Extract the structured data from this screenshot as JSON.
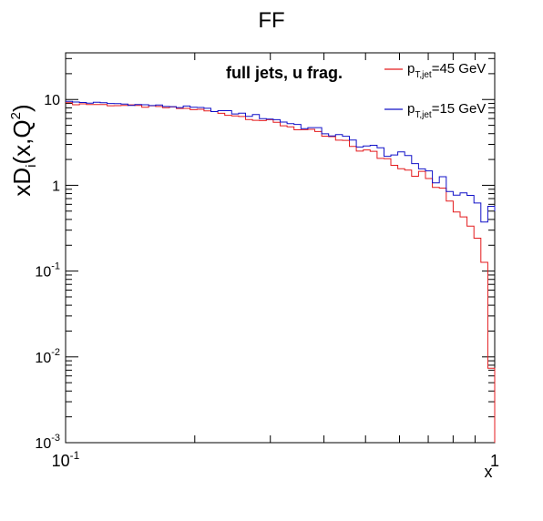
{
  "chart_data": {
    "type": "line",
    "title": "FF",
    "xlabel": "x",
    "ylabel_main": "xD",
    "ylabel_sub": "i",
    "ylabel_args": "(x,Q",
    "ylabel_sup": "2",
    "ylabel_close": ")",
    "annotation": "full jets, u frag.",
    "xscale": "log",
    "yscale": "log",
    "xlim": [
      0.1,
      1.0
    ],
    "ylim": [
      0.001,
      35
    ],
    "x_tick_labels": [
      {
        "base": "10",
        "exp": "-1",
        "value": 0.1
      },
      {
        "base": "1",
        "exp": "",
        "value": 1
      }
    ],
    "y_tick_labels": [
      {
        "base": "10",
        "exp": "",
        "value": 10
      },
      {
        "base": "1",
        "exp": "",
        "value": 1
      },
      {
        "base": "10",
        "exp": "-1",
        "value": 0.1
      },
      {
        "base": "10",
        "exp": "-2",
        "value": 0.01
      },
      {
        "base": "10",
        "exp": "-3",
        "value": 0.001
      }
    ],
    "legend_position": "top-right",
    "series": [
      {
        "legend_main": "p",
        "legend_sub": "T,jet",
        "legend_rest": "=45 GeV",
        "color": "#e41a1c",
        "x": [
          0.1,
          0.2,
          0.3,
          0.4,
          0.5,
          0.6,
          0.7,
          0.8,
          0.9,
          0.95,
          1.0
        ],
        "y": [
          9.0,
          7.7,
          5.5,
          3.8,
          2.5,
          1.8,
          1.2,
          0.6,
          0.35,
          0.15,
          0.001
        ]
      },
      {
        "legend_main": "p",
        "legend_sub": "T,jet",
        "legend_rest": "=15 GeV",
        "color": "#1010c8",
        "x": [
          0.1,
          0.2,
          0.3,
          0.4,
          0.5,
          0.6,
          0.7,
          0.8,
          0.9,
          0.95,
          1.0
        ],
        "y": [
          9.4,
          8.0,
          6.0,
          4.2,
          2.9,
          2.2,
          1.5,
          0.85,
          0.7,
          0.4,
          0.5
        ]
      }
    ]
  }
}
